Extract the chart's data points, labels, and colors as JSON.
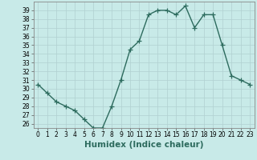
{
  "x": [
    0,
    1,
    2,
    3,
    4,
    5,
    6,
    7,
    8,
    9,
    10,
    11,
    12,
    13,
    14,
    15,
    16,
    17,
    18,
    19,
    20,
    21,
    22,
    23
  ],
  "y": [
    30.5,
    29.5,
    28.5,
    28.0,
    27.5,
    26.5,
    25.5,
    25.5,
    28.0,
    31.0,
    34.5,
    35.5,
    38.5,
    39.0,
    39.0,
    38.5,
    39.5,
    37.0,
    38.5,
    38.5,
    35.0,
    31.5,
    31.0,
    30.5
  ],
  "line_color": "#2d6b5e",
  "bg_color": "#c8eae8",
  "grid_color": "#b0d0d0",
  "xlabel": "Humidex (Indice chaleur)",
  "ylim": [
    25.5,
    40.0
  ],
  "xlim": [
    -0.5,
    23.5
  ],
  "yticks": [
    26,
    27,
    28,
    29,
    30,
    31,
    32,
    33,
    34,
    35,
    36,
    37,
    38,
    39
  ],
  "xticks": [
    0,
    1,
    2,
    3,
    4,
    5,
    6,
    7,
    8,
    9,
    10,
    11,
    12,
    13,
    14,
    15,
    16,
    17,
    18,
    19,
    20,
    21,
    22,
    23
  ],
  "marker": "+",
  "markersize": 4,
  "linewidth": 1.0,
  "xlabel_fontsize": 7.5,
  "tick_fontsize": 5.5
}
